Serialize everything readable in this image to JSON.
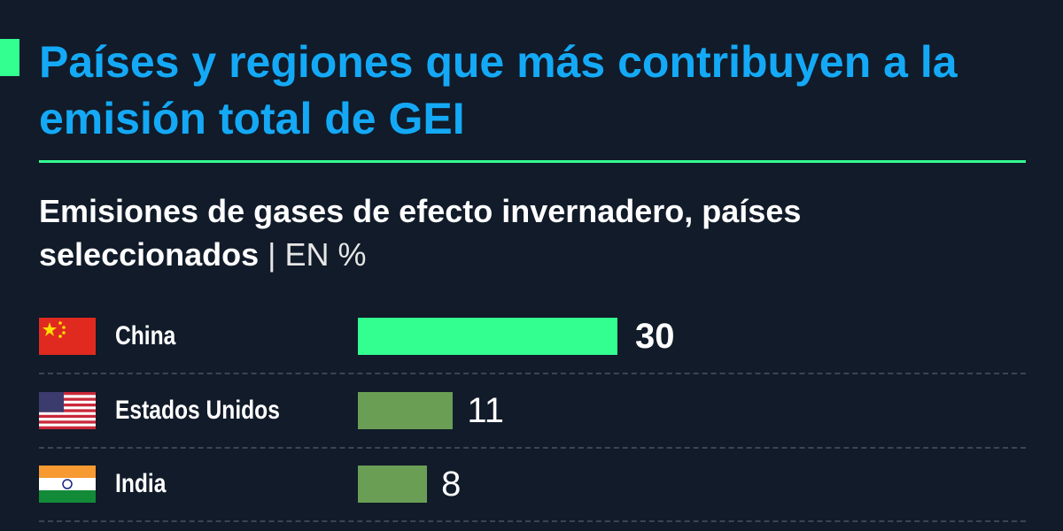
{
  "chart_data": {
    "type": "bar",
    "title": "Países y regiones que más contribuyen a la emisión total de GEI",
    "subtitle": "Emisiones de gases de efecto invernadero, países seleccionados",
    "unit": "EN %",
    "categories": [
      "China",
      "Estados Unidos",
      "India"
    ],
    "values": [
      30,
      11,
      8
    ],
    "colors": [
      "#33ff91",
      "#6a9e55",
      "#6a9e55"
    ]
  }
}
